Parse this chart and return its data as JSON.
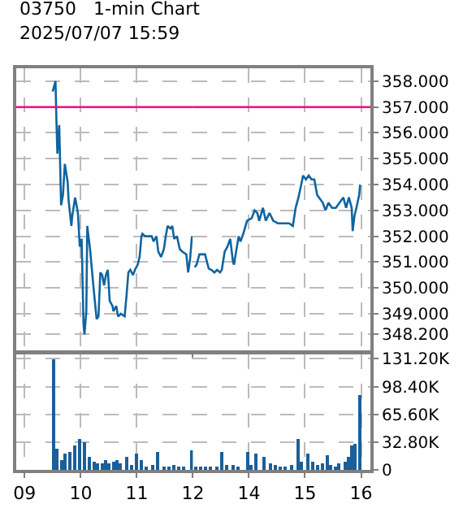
{
  "chart_data": [
    {
      "type": "line",
      "title": "03750   1-min Chart",
      "subtitle": "2025/07/07 15:59",
      "color": "#0f64a0",
      "x": [
        "2025-07-07T09:30",
        "2025-07-07T09:33",
        "2025-07-07T09:34",
        "2025-07-07T09:35",
        "2025-07-07T09:37",
        "2025-07-07T09:39",
        "2025-07-07T09:41",
        "2025-07-07T09:43",
        "2025-07-07T09:46",
        "2025-07-07T09:47",
        "2025-07-07T09:50",
        "2025-07-07T09:51",
        "2025-07-07T09:54",
        "2025-07-07T09:57",
        "2025-07-07T09:59",
        "2025-07-07T10:01",
        "2025-07-07T10:03",
        "2025-07-07T10:04",
        "2025-07-07T10:06",
        "2025-07-07T10:07",
        "2025-07-07T10:10",
        "2025-07-07T10:11",
        "2025-07-07T10:14",
        "2025-07-07T10:17",
        "2025-07-07T10:19",
        "2025-07-07T10:21",
        "2025-07-07T10:23",
        "2025-07-07T10:25",
        "2025-07-07T10:27",
        "2025-07-07T10:29",
        "2025-07-07T10:31",
        "2025-07-07T10:34",
        "2025-07-07T10:35",
        "2025-07-07T10:38",
        "2025-07-07T10:40",
        "2025-07-07T10:43",
        "2025-07-07T10:47",
        "2025-07-07T10:49",
        "2025-07-07T10:51",
        "2025-07-07T10:53",
        "2025-07-07T10:56",
        "2025-07-07T10:58",
        "2025-07-07T11:01",
        "2025-07-07T11:03",
        "2025-07-07T11:05",
        "2025-07-07T11:06",
        "2025-07-07T11:09",
        "2025-07-07T11:11",
        "2025-07-07T11:16",
        "2025-07-07T11:18",
        "2025-07-07T11:21",
        "2025-07-07T11:23",
        "2025-07-07T11:26",
        "2025-07-07T11:29",
        "2025-07-07T11:31",
        "2025-07-07T11:33",
        "2025-07-07T11:36",
        "2025-07-07T11:38",
        "2025-07-07T11:40",
        "2025-07-07T11:43",
        "2025-07-07T11:46",
        "2025-07-07T11:49",
        "2025-07-07T11:53",
        "2025-07-07T11:55",
        "2025-07-07T11:57",
        "2025-07-07T11:59"
      ],
      "values": [
        357.6,
        358.0,
        356.5,
        355.2,
        356.3,
        353.2,
        353.6,
        354.8,
        354.1,
        353.4,
        352.4,
        352.8,
        353.5,
        352.9,
        351.6,
        351.9,
        348.6,
        348.2,
        349.1,
        352.4,
        351.5,
        351.1,
        349.9,
        348.8,
        348.9,
        350.6,
        350.5,
        350.1,
        350.5,
        350.7,
        349.5,
        349.3,
        349.1,
        349.3,
        348.9,
        349.0,
        348.9,
        349.7,
        350.6,
        350.7,
        350.5,
        350.7,
        350.9,
        351.2,
        352.0,
        352.1,
        352.0,
        352.0,
        352.0,
        351.8,
        352.0,
        351.4,
        351.2,
        351.5,
        352.0,
        352.4,
        352.3,
        352.4,
        351.9,
        352.0,
        351.5,
        351.4,
        351.3,
        350.6,
        351.1,
        352.0
      ],
      "xlim": [
        "2025-07-07T08:51",
        "2025-07-07T12:00"
      ],
      "xticks": [
        {
          "value": "2025-07-07T09:00",
          "label": null
        },
        {
          "value": "2025-07-07T10:00",
          "label": null
        },
        {
          "value": "2025-07-07T11:00",
          "label": null
        },
        {
          "value": "2025-07-07T12:00",
          "label": null
        }
      ],
      "ylim": [
        347.6,
        358.5
      ],
      "ref_lines": [
        {
          "axis": "y",
          "value": 357,
          "color": "#ff0080"
        }
      ],
      "grid": true,
      "tick_labels": false
    },
    {
      "type": "line",
      "color": "#0f64a0",
      "x": [
        "2025-07-07T13:02",
        "2025-07-07T13:04",
        "2025-07-07T13:07",
        "2025-07-07T13:10",
        "2025-07-07T13:13",
        "2025-07-07T13:17",
        "2025-07-07T13:20",
        "2025-07-07T13:23",
        "2025-07-07T13:26",
        "2025-07-07T13:29",
        "2025-07-07T13:31",
        "2025-07-07T13:34",
        "2025-07-07T13:37",
        "2025-07-07T13:40",
        "2025-07-07T13:43",
        "2025-07-07T13:44",
        "2025-07-07T13:49",
        "2025-07-07T13:51",
        "2025-07-07T13:54",
        "2025-07-07T13:58",
        "2025-07-07T14:03",
        "2025-07-07T14:06",
        "2025-07-07T14:09",
        "2025-07-07T14:11",
        "2025-07-07T14:15",
        "2025-07-07T14:18",
        "2025-07-07T14:22",
        "2025-07-07T14:26",
        "2025-07-07T14:31",
        "2025-07-07T14:37",
        "2025-07-07T14:43",
        "2025-07-07T14:47",
        "2025-07-07T14:50",
        "2025-07-07T14:53",
        "2025-07-07T14:56",
        "2025-07-07T14:58",
        "2025-07-07T15:01",
        "2025-07-07T15:04",
        "2025-07-07T15:07",
        "2025-07-07T15:10",
        "2025-07-07T15:13",
        "2025-07-07T15:15",
        "2025-07-07T15:19",
        "2025-07-07T15:22",
        "2025-07-07T15:25",
        "2025-07-07T15:29",
        "2025-07-07T15:33",
        "2025-07-07T15:37",
        "2025-07-07T15:41",
        "2025-07-07T15:44",
        "2025-07-07T15:47",
        "2025-07-07T15:50",
        "2025-07-07T15:51",
        "2025-07-07T15:53",
        "2025-07-07T15:55",
        "2025-07-07T15:58",
        "2025-07-07T15:59"
      ],
      "values": [
        350.8,
        350.9,
        351.3,
        351.3,
        351.3,
        350.75,
        350.7,
        350.6,
        350.7,
        350.6,
        350.7,
        351.4,
        351.6,
        351.9,
        351.0,
        350.9,
        352.0,
        351.8,
        352.1,
        352.6,
        352.7,
        353.0,
        352.9,
        352.6,
        353.1,
        352.6,
        352.9,
        352.6,
        352.5,
        352.5,
        352.5,
        352.4,
        353.1,
        353.5,
        354.0,
        354.35,
        354.2,
        354.35,
        354.2,
        354.2,
        353.6,
        353.5,
        353.3,
        353.0,
        353.3,
        353.1,
        353.1,
        353.3,
        353.5,
        353.1,
        353.5,
        353.1,
        352.2,
        352.8,
        353.1,
        353.6,
        354.0
      ],
      "xlim": [
        "2025-07-07T13:00",
        "2025-07-07T16:10"
      ],
      "xticks": [
        {
          "value": "2025-07-07T14:00",
          "label": null
        },
        {
          "value": "2025-07-07T15:00",
          "label": null
        },
        {
          "value": "2025-07-07T16:00",
          "label": null
        }
      ],
      "ylim": [
        347.6,
        358.5
      ],
      "yticks": [
        {
          "value": 358,
          "label": "358.000"
        },
        {
          "value": 357,
          "label": "357.000"
        },
        {
          "value": 356,
          "label": "356.000"
        },
        {
          "value": 355,
          "label": "355.000"
        },
        {
          "value": 354,
          "label": "354.000"
        },
        {
          "value": 353,
          "label": "353.000"
        },
        {
          "value": 352,
          "label": "352.000"
        },
        {
          "value": 351,
          "label": "351.000"
        },
        {
          "value": 350,
          "label": "350.000"
        },
        {
          "value": 349,
          "label": "349.000"
        },
        {
          "value": 348.2,
          "label": "348.200"
        }
      ],
      "ref_lines": [
        {
          "axis": "y",
          "value": 357,
          "color": "#ff0080"
        }
      ],
      "grid": true,
      "tick_labels": "y"
    },
    {
      "type": "bar",
      "color": "#1a5f99",
      "x": [
        "2025-07-07T09:31",
        "2025-07-07T09:35",
        "2025-07-07T09:40",
        "2025-07-07T09:44",
        "2025-07-07T09:49",
        "2025-07-07T09:54",
        "2025-07-07T10:00",
        "2025-07-07T10:04",
        "2025-07-07T10:09",
        "2025-07-07T10:14",
        "2025-07-07T10:18",
        "2025-07-07T10:23",
        "2025-07-07T10:27",
        "2025-07-07T10:31",
        "2025-07-07T10:35",
        "2025-07-07T10:39",
        "2025-07-07T10:43",
        "2025-07-07T10:49",
        "2025-07-07T10:54",
        "2025-07-07T11:00",
        "2025-07-07T11:06",
        "2025-07-07T11:11",
        "2025-07-07T11:17",
        "2025-07-07T11:23",
        "2025-07-07T11:29",
        "2025-07-07T11:34",
        "2025-07-07T11:40",
        "2025-07-07T11:46",
        "2025-07-07T11:51",
        "2025-07-07T11:59"
      ],
      "values": [
        131000,
        24000,
        12000,
        18000,
        20000,
        28000,
        36000,
        32000,
        14000,
        10000,
        8000,
        7000,
        11000,
        7000,
        9000,
        12000,
        8000,
        15000,
        6000,
        18000,
        12000,
        4000,
        5000,
        20000,
        3000,
        4000,
        6000,
        3000,
        4000,
        22000
      ],
      "xlim": [
        "2025-07-07T08:51",
        "2025-07-07T12:00"
      ],
      "xticks": [
        {
          "value": "2025-07-07T09:00",
          "label": "09"
        },
        {
          "value": "2025-07-07T10:00",
          "label": "10"
        },
        {
          "value": "2025-07-07T11:00",
          "label": "11"
        },
        {
          "value": "2025-07-07T12:00",
          "label": "12"
        }
      ],
      "ylim": [
        0,
        136000
      ],
      "grid": true,
      "tick_labels": "x"
    },
    {
      "type": "bar",
      "color": "#1a5f99",
      "x": [
        "2025-07-07T13:03",
        "2025-07-07T13:09",
        "2025-07-07T13:14",
        "2025-07-07T13:20",
        "2025-07-07T13:26",
        "2025-07-07T13:31",
        "2025-07-07T13:37",
        "2025-07-07T13:43",
        "2025-07-07T13:49",
        "2025-07-07T13:59",
        "2025-07-07T14:03",
        "2025-07-07T14:09",
        "2025-07-07T14:17",
        "2025-07-07T14:23",
        "2025-07-07T14:29",
        "2025-07-07T14:34",
        "2025-07-07T14:40",
        "2025-07-07T14:46",
        "2025-07-07T14:53",
        "2025-07-07T14:57",
        "2025-07-07T15:03",
        "2025-07-07T15:09",
        "2025-07-07T15:14",
        "2025-07-07T15:20",
        "2025-07-07T15:24",
        "2025-07-07T15:29",
        "2025-07-07T15:33",
        "2025-07-07T15:37",
        "2025-07-07T15:43",
        "2025-07-07T15:47",
        "2025-07-07T15:51",
        "2025-07-07T15:55",
        "2025-07-07T15:59"
      ],
      "values": [
        4000,
        3000,
        2000,
        4000,
        3000,
        20000,
        5000,
        6000,
        4000,
        20000,
        6000,
        18000,
        15000,
        8000,
        6000,
        3000,
        4000,
        6000,
        37000,
        10000,
        18000,
        10000,
        5000,
        8000,
        16000,
        6000,
        4000,
        8000,
        10000,
        15000,
        28000,
        30000,
        88000
      ],
      "xlim": [
        "2025-07-07T13:00",
        "2025-07-07T16:10"
      ],
      "xticks": [
        {
          "value": "2025-07-07T14:00",
          "label": "14"
        },
        {
          "value": "2025-07-07T15:00",
          "label": "15"
        },
        {
          "value": "2025-07-07T16:00",
          "label": "16"
        }
      ],
      "ylim": [
        0,
        136000
      ],
      "yticks": [
        {
          "value": 131200,
          "label": "131.20K"
        },
        {
          "value": 98400,
          "label": "98.40K"
        },
        {
          "value": 65600,
          "label": "65.60K"
        },
        {
          "value": 32800,
          "label": "32.80K"
        },
        0
      ],
      "grid": true
    }
  ]
}
